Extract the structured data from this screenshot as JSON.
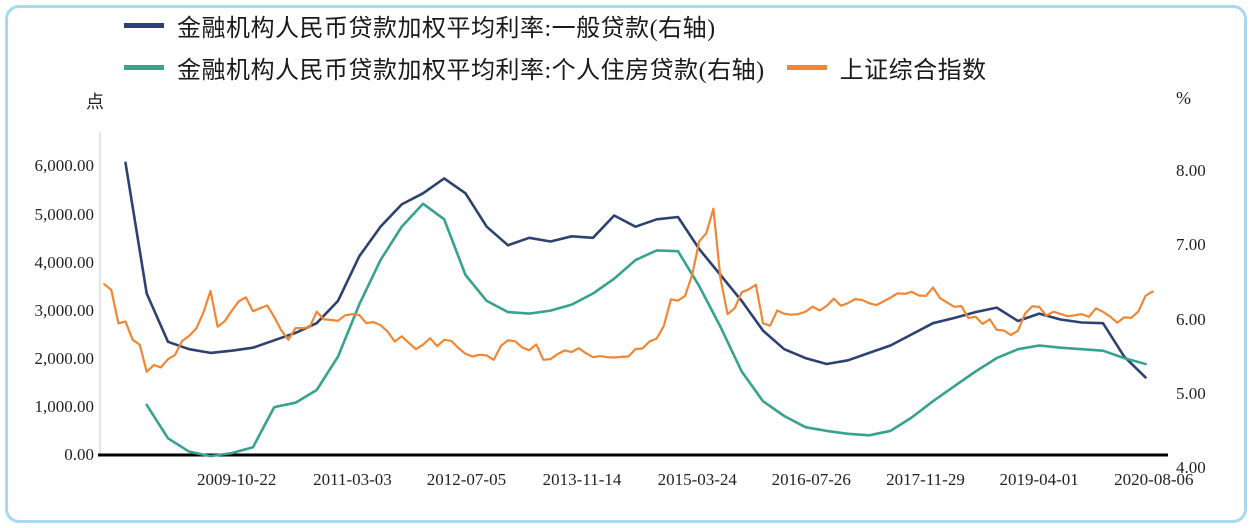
{
  "chart_data": {
    "type": "line",
    "title": "",
    "legend_position": "top-left",
    "grid": false,
    "left_axis": {
      "unit": "点",
      "ticks": [
        {
          "v": 6000,
          "label": "6,000.00"
        },
        {
          "v": 5000,
          "label": "5,000.00"
        },
        {
          "v": 4000,
          "label": "4,000.00"
        },
        {
          "v": 3000,
          "label": "3,000.00"
        },
        {
          "v": 2000,
          "label": "2,000.00"
        },
        {
          "v": 1000,
          "label": "1,000.00"
        },
        {
          "v": 0,
          "label": "0.00"
        }
      ]
    },
    "right_axis": {
      "unit": "%",
      "ticks": [
        {
          "v": 8,
          "label": "8.00"
        },
        {
          "v": 7,
          "label": "7.00"
        },
        {
          "v": 6,
          "label": "6.00"
        },
        {
          "v": 5,
          "label": "5.00"
        },
        {
          "v": 4,
          "label": "4.00"
        }
      ]
    },
    "x_axis": {
      "ticks": [
        {
          "t": 2009.808,
          "label": "2009-10-22"
        },
        {
          "t": 2011.17,
          "label": "2011-03-03"
        },
        {
          "t": 2012.511,
          "label": "2012-07-05"
        },
        {
          "t": 2013.871,
          "label": "2013-11-14"
        },
        {
          "t": 2015.227,
          "label": "2015-03-24"
        },
        {
          "t": 2016.568,
          "label": "2016-07-26"
        },
        {
          "t": 2017.912,
          "label": "2017-11-29"
        },
        {
          "t": 2019.249,
          "label": "2019-04-01"
        },
        {
          "t": 2020.598,
          "label": "2020-08-06"
        }
      ]
    },
    "series": [
      {
        "name": "金融机构人民币贷款加权平均利率:一般贷款(右轴)",
        "axis": "right",
        "color": "#2e4272",
        "t0": 2008.5,
        "dt": 0.25,
        "values": [
          8.11,
          6.35,
          5.7,
          5.6,
          5.55,
          5.58,
          5.62,
          5.72,
          5.82,
          5.95,
          6.25,
          6.85,
          7.25,
          7.55,
          7.7,
          7.9,
          7.7,
          7.25,
          7.0,
          7.1,
          7.05,
          7.12,
          7.1,
          7.4,
          7.25,
          7.35,
          7.38,
          6.95,
          6.6,
          6.25,
          5.85,
          5.6,
          5.48,
          5.4,
          5.45,
          5.55,
          5.65,
          5.8,
          5.95,
          6.02,
          6.1,
          6.16,
          5.98,
          6.08,
          6.0,
          5.96,
          5.95,
          5.5,
          5.22
        ]
      },
      {
        "name": "金融机构人民币贷款加权平均利率:个人住房贷款(右轴)",
        "axis": "right",
        "color": "#36a28f",
        "t0": 2008.75,
        "dt": 0.25,
        "values": [
          4.85,
          4.4,
          4.22,
          4.16,
          4.2,
          4.28,
          4.82,
          4.88,
          5.05,
          5.5,
          6.2,
          6.8,
          7.25,
          7.56,
          7.35,
          6.6,
          6.25,
          6.1,
          6.08,
          6.12,
          6.2,
          6.35,
          6.55,
          6.8,
          6.93,
          6.92,
          6.45,
          5.9,
          5.3,
          4.9,
          4.7,
          4.55,
          4.5,
          4.46,
          4.44,
          4.5,
          4.68,
          4.9,
          5.1,
          5.3,
          5.48,
          5.6,
          5.65,
          5.62,
          5.6,
          5.58,
          5.48,
          5.4
        ]
      },
      {
        "name": "上证综合指数",
        "axis": "left",
        "color": "#f18634",
        "t0": 2008.25,
        "dt": 0.0833333,
        "values": [
          3550,
          3433,
          2736,
          2775,
          2397,
          2294,
          1729,
          1871,
          1821,
          1991,
          2083,
          2373,
          2477,
          2633,
          2959,
          3412,
          2668,
          2779,
          2995,
          3195,
          3277,
          2989,
          3052,
          3109,
          2871,
          2592,
          2398,
          2638,
          2639,
          2656,
          2979,
          2820,
          2808,
          2790,
          2905,
          2928,
          2911,
          2743,
          2762,
          2701,
          2567,
          2359,
          2468,
          2333,
          2199,
          2293,
          2428,
          2262,
          2396,
          2372,
          2225,
          2103,
          2047,
          2086,
          2068,
          1980,
          2269,
          2385,
          2365,
          2236,
          2177,
          2300,
          1979,
          1993,
          2098,
          2174,
          2141,
          2220,
          2116,
          2033,
          2056,
          2033,
          2026,
          2039,
          2048,
          2201,
          2217,
          2363,
          2420,
          2682,
          3235,
          3210,
          3310,
          3747,
          4441,
          4612,
          5120,
          3664,
          2927,
          3053,
          3383,
          3445,
          3539,
          2738,
          2688,
          3004,
          2938,
          2917,
          2930,
          2979,
          3085,
          3005,
          3100,
          3250,
          3104,
          3159,
          3242,
          3223,
          3155,
          3117,
          3192,
          3273,
          3361,
          3349,
          3393,
          3317,
          3307,
          3481,
          3259,
          3169,
          3082,
          3095,
          2847,
          2876,
          2725,
          2821,
          2603,
          2588,
          2494,
          2585,
          2941,
          3091,
          3078,
          2899,
          2979,
          2933,
          2886,
          2905,
          2929,
          2872,
          3050,
          2977,
          2880,
          2750,
          2860,
          2852,
          2985,
          3310,
          3400
        ]
      }
    ]
  }
}
